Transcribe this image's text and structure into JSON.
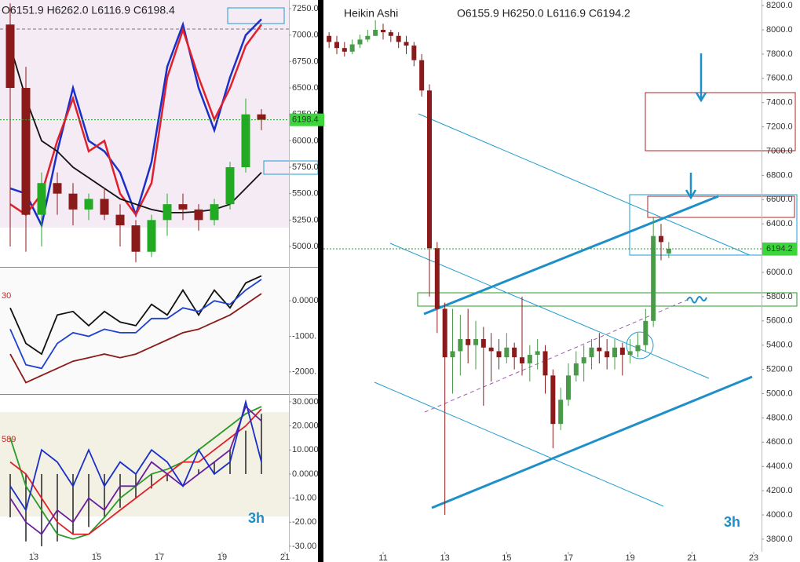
{
  "chart_data": [
    {
      "type": "candlestick",
      "header": "O6151.9 H6262.0 L6116.9 C6198.4",
      "last_price": 6198.4,
      "ylim": [
        4807,
        7332
      ],
      "xlim": [
        11.925,
        21.125
      ],
      "yticks": [
        {
          "value": 5000,
          "label": "5000.0"
        },
        {
          "value": 5250,
          "label": "5250.0"
        },
        {
          "value": 5500,
          "label": "5500.0"
        },
        {
          "value": 5750,
          "label": "5750.0"
        },
        {
          "value": 6000,
          "label": "6000.0"
        },
        {
          "value": 6250,
          "label": "6250.0"
        },
        {
          "value": 6500,
          "label": "6500.0"
        },
        {
          "value": 6750,
          "label": "6750.0"
        },
        {
          "value": 7000,
          "label": "7000.0"
        },
        {
          "value": 7250,
          "label": "7250.0"
        }
      ],
      "x": [
        12.25,
        12.75,
        13.25,
        13.75,
        14.25,
        14.75,
        15.25,
        15.75,
        16.25,
        16.75,
        17.25,
        17.75,
        18.25,
        18.75,
        19.25,
        19.75,
        20.25
      ],
      "open": [
        7100,
        6500,
        5300,
        5600,
        5500,
        5350,
        5450,
        5300,
        5200,
        4950,
        5250,
        5400,
        5350,
        5250,
        5400,
        5750,
        6250
      ],
      "high": [
        7300,
        6700,
        5700,
        5700,
        5600,
        5500,
        5550,
        5400,
        5250,
        5300,
        5500,
        5500,
        5400,
        5450,
        5800,
        6400,
        6300
      ],
      "low": [
        5000,
        4950,
        5000,
        5300,
        5200,
        5250,
        5250,
        5000,
        4850,
        4900,
        5100,
        5250,
        5150,
        5200,
        5350,
        5700,
        6100
      ],
      "close": [
        6500,
        5300,
        5600,
        5500,
        5350,
        5450,
        5300,
        5200,
        4950,
        5250,
        5400,
        5350,
        5250,
        5400,
        5750,
        6250,
        6198.4
      ],
      "series": [
        {
          "color": "#1a2fc9",
          "values": [
            5550,
            5500,
            5200,
            5900,
            6500,
            6000,
            5900,
            5700,
            5300,
            5800,
            6700,
            7100,
            6500,
            6100,
            6600,
            7000,
            7150
          ]
        },
        {
          "color": "#e0202a",
          "values": [
            5400,
            5300,
            5500,
            6000,
            6400,
            5900,
            6000,
            5500,
            5300,
            5600,
            6600,
            7050,
            6600,
            6200,
            6500,
            6900,
            7100
          ]
        },
        {
          "color": "#111111",
          "values": [
            6900,
            6400,
            6000,
            5900,
            5750,
            5650,
            5550,
            5450,
            5400,
            5350,
            5320,
            5320,
            5330,
            5350,
            5400,
            5550,
            5700
          ]
        }
      ]
    },
    {
      "type": "line",
      "label": "30",
      "ylim": [
        -2600,
        930
      ],
      "xlim": [
        11.925,
        21.125
      ],
      "yticks": [
        {
          "value": 0,
          "label": "0.0000"
        },
        {
          "value": -1000,
          "label": "-1000."
        },
        {
          "value": -2000,
          "label": "-2000."
        }
      ],
      "x": [
        12.25,
        12.75,
        13.25,
        13.75,
        14.25,
        14.75,
        15.25,
        15.75,
        16.25,
        16.75,
        17.25,
        17.75,
        18.25,
        18.75,
        19.25,
        19.75,
        20.25
      ],
      "series": [
        {
          "color": "#111111",
          "values": [
            -200,
            -1200,
            -1500,
            -400,
            -300,
            -700,
            -300,
            -600,
            -700,
            -100,
            -400,
            300,
            -400,
            300,
            -200,
            500,
            700
          ]
        },
        {
          "color": "#8b1a1a",
          "values": [
            -1500,
            -2300,
            -2100,
            -1900,
            -1700,
            -1600,
            -1500,
            -1600,
            -1500,
            -1300,
            -1100,
            -900,
            -800,
            -600,
            -400,
            -100,
            200
          ]
        },
        {
          "color": "#2040d0",
          "values": [
            -800,
            -1800,
            -1900,
            -1200,
            -900,
            -1000,
            -800,
            -900,
            -900,
            -500,
            -500,
            -200,
            -300,
            0,
            -100,
            300,
            600
          ]
        }
      ]
    },
    {
      "type": "line",
      "label": "589",
      "timeframe": "3h",
      "ylim": [
        -32.3,
        32.9
      ],
      "xlim": [
        11.925,
        21.125
      ],
      "yticks": [
        {
          "value": 30,
          "label": "30.000"
        },
        {
          "value": 20,
          "label": "20.000"
        },
        {
          "value": 10,
          "label": "10.000"
        },
        {
          "value": 0,
          "label": "0.0000"
        },
        {
          "value": -10,
          "label": "-10.00"
        },
        {
          "value": -20,
          "label": "-20.00"
        },
        {
          "value": -30,
          "label": "-30.00"
        }
      ],
      "xticks": [
        13,
        15,
        17,
        19,
        21
      ],
      "x": [
        12.25,
        12.75,
        13.25,
        13.75,
        14.25,
        14.75,
        15.25,
        15.75,
        16.25,
        16.75,
        17.25,
        17.75,
        18.25,
        18.75,
        19.25,
        19.75,
        20.25
      ],
      "series": [
        {
          "color": "#222222",
          "style": "histogram",
          "values": [
            -18,
            -28,
            -30,
            -28,
            -25,
            -22,
            -18,
            -14,
            -10,
            -6,
            -3,
            0,
            2,
            5,
            10,
            18,
            25
          ]
        },
        {
          "color": "#2a9a2a",
          "values": [
            15,
            -5,
            -15,
            -25,
            -27,
            -25,
            -18,
            -10,
            -5,
            0,
            2,
            5,
            10,
            15,
            20,
            25,
            28
          ]
        },
        {
          "color": "#e0202a",
          "values": [
            5,
            0,
            -10,
            -20,
            -25,
            -25,
            -20,
            -15,
            -10,
            -5,
            0,
            5,
            5,
            10,
            15,
            20,
            27
          ]
        },
        {
          "color": "#6a1fa0",
          "values": [
            -10,
            -20,
            -25,
            -15,
            -20,
            -10,
            -15,
            -5,
            -5,
            5,
            0,
            -5,
            0,
            5,
            10,
            28,
            22
          ]
        },
        {
          "color": "#1a2fc9",
          "values": [
            -5,
            -15,
            10,
            5,
            -5,
            10,
            -5,
            5,
            0,
            10,
            5,
            -5,
            10,
            0,
            5,
            30,
            5
          ]
        }
      ]
    },
    {
      "type": "candlestick",
      "title": "Heikin Ashi",
      "header": "O6155.9 H6250.0 L6116.9 C6194.2",
      "last_price": 6194.2,
      "timeframe": "3h",
      "ylim": [
        3696,
        8246
      ],
      "xlim": [
        9.068,
        23.254
      ],
      "yticks": [
        {
          "value": 3800,
          "label": "3800.0"
        },
        {
          "value": 4000,
          "label": "4000.0"
        },
        {
          "value": 4200,
          "label": "4200.0"
        },
        {
          "value": 4400,
          "label": "4400.0"
        },
        {
          "value": 4600,
          "label": "4600.0"
        },
        {
          "value": 4800,
          "label": "4800.0"
        },
        {
          "value": 5000,
          "label": "5000.0"
        },
        {
          "value": 5200,
          "label": "5200.0"
        },
        {
          "value": 5400,
          "label": "5400.0"
        },
        {
          "value": 5600,
          "label": "5600.0"
        },
        {
          "value": 5800,
          "label": "5800.0"
        },
        {
          "value": 6000,
          "label": "6000.0"
        },
        {
          "value": 6200,
          "label": "6200.0"
        },
        {
          "value": 6400,
          "label": "6400.0"
        },
        {
          "value": 6600,
          "label": "6600.0"
        },
        {
          "value": 6800,
          "label": "6800.0"
        },
        {
          "value": 7000,
          "label": "7000.0"
        },
        {
          "value": 7200,
          "label": "7200.0"
        },
        {
          "value": 7400,
          "label": "7400.0"
        },
        {
          "value": 7600,
          "label": "7600.0"
        },
        {
          "value": 7800,
          "label": "7800.0"
        },
        {
          "value": 8000,
          "label": "8000.0"
        },
        {
          "value": 8200,
          "label": "8200.0"
        }
      ],
      "xticks": [
        11,
        13,
        15,
        17,
        19,
        21,
        23
      ],
      "x": [
        9.25,
        9.5,
        9.75,
        10,
        10.25,
        10.5,
        10.75,
        11,
        11.25,
        11.5,
        11.75,
        12,
        12.25,
        12.5,
        12.75,
        13,
        13.25,
        13.5,
        13.75,
        14,
        14.25,
        14.5,
        14.75,
        15,
        15.25,
        15.5,
        15.75,
        16,
        16.25,
        16.5,
        16.75,
        17,
        17.25,
        17.5,
        17.75,
        18,
        18.25,
        18.5,
        18.75,
        19,
        19.25,
        19.5,
        19.75,
        20,
        20.25
      ],
      "open": [
        7950,
        7900,
        7850,
        7820,
        7880,
        7920,
        7950,
        8000,
        7980,
        7950,
        7900,
        7870,
        7750,
        7500,
        6200,
        5700,
        5300,
        5350,
        5450,
        5400,
        5450,
        5380,
        5350,
        5300,
        5380,
        5300,
        5250,
        5320,
        5350,
        5150,
        4750,
        4950,
        5150,
        5250,
        5300,
        5380,
        5350,
        5300,
        5380,
        5320,
        5350,
        5400,
        5600,
        6300,
        6155.9
      ],
      "high": [
        7980,
        7950,
        7900,
        7920,
        7960,
        8000,
        8080,
        8050,
        8000,
        7980,
        7950,
        7900,
        7800,
        7550,
        6250,
        5750,
        5700,
        5650,
        5700,
        5600,
        5550,
        5500,
        5450,
        5500,
        5420,
        5800,
        5400,
        5450,
        5400,
        5200,
        5050,
        5250,
        5350,
        5400,
        5450,
        5500,
        5450,
        5450,
        5420,
        5450,
        5500,
        5700,
        6450,
        6400,
        6250
      ],
      "low": [
        7850,
        7800,
        7780,
        7800,
        7850,
        7900,
        7950,
        7920,
        7900,
        7850,
        7800,
        7700,
        7450,
        5800,
        5500,
        4000,
        5000,
        5150,
        5250,
        5200,
        4900,
        5100,
        5200,
        5250,
        5200,
        5150,
        5100,
        5200,
        5000,
        4550,
        4700,
        4900,
        5100,
        5100,
        5200,
        5250,
        5200,
        5200,
        5150,
        5250,
        5300,
        5350,
        5550,
        6100,
        6116.9
      ],
      "close": [
        7900,
        7850,
        7820,
        7880,
        7920,
        7950,
        8000,
        7980,
        7950,
        7900,
        7870,
        7750,
        7500,
        6200,
        5700,
        5300,
        5350,
        5450,
        5400,
        5450,
        5380,
        5350,
        5300,
        5380,
        5300,
        5250,
        5320,
        5350,
        5150,
        4750,
        4950,
        5150,
        5250,
        5300,
        5380,
        5350,
        5300,
        5380,
        5320,
        5350,
        5400,
        5600,
        6300,
        6250,
        6194.2
      ]
    }
  ]
}
